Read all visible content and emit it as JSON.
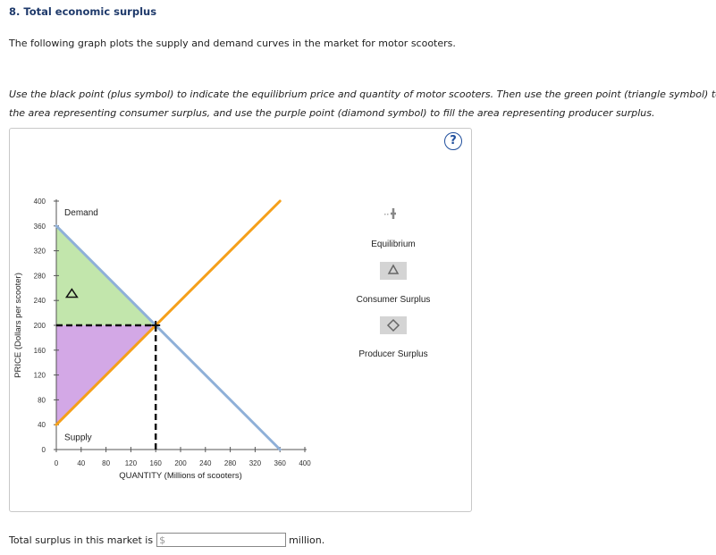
{
  "question": {
    "title": "8. Total economic surplus",
    "intro": "The following graph plots the supply and demand curves in the market for motor scooters.",
    "instructions_line1": "Use the black point (plus symbol) to indicate the equilibrium price and quantity of motor scooters. Then use the green point (triangle symbol) to fill",
    "instructions_line2": "the area representing consumer surplus, and use the purple point (diamond symbol) to fill the area representing producer surplus."
  },
  "help": {
    "label": "?"
  },
  "chart_data": {
    "type": "line",
    "title": "",
    "xlabel": "QUANTITY (Millions of scooters)",
    "ylabel": "PRICE (Dollars per scooter)",
    "xlim": [
      0,
      400
    ],
    "ylim": [
      0,
      400
    ],
    "x_ticks": [
      0,
      40,
      80,
      120,
      160,
      200,
      240,
      280,
      320,
      360,
      400
    ],
    "y_ticks": [
      0,
      40,
      80,
      120,
      160,
      200,
      240,
      280,
      320,
      360,
      400
    ],
    "series": [
      {
        "name": "Demand",
        "color": "#8fb0d8",
        "points": [
          [
            0,
            360
          ],
          [
            360,
            0
          ]
        ]
      },
      {
        "name": "Supply",
        "color": "#f5a01a",
        "points": [
          [
            0,
            40
          ],
          [
            360,
            400
          ]
        ]
      }
    ],
    "equilibrium": {
      "quantity": 160,
      "price": 200
    },
    "consumer_surplus": {
      "color": "#c2e6ac",
      "vertices": [
        [
          0,
          360
        ],
        [
          0,
          200
        ],
        [
          160,
          200
        ]
      ]
    },
    "producer_surplus": {
      "color": "#d3a8e6",
      "vertices": [
        [
          0,
          200
        ],
        [
          160,
          200
        ],
        [
          0,
          40
        ]
      ]
    },
    "annotations": [
      {
        "text": "Demand",
        "x": 13,
        "y": 377
      },
      {
        "text": "Supply",
        "x": 13,
        "y": 15
      }
    ],
    "grid": false
  },
  "legend": {
    "equilibrium": "Equilibrium",
    "consumer_surplus": "Consumer Surplus",
    "producer_surplus": "Producer Surplus"
  },
  "answer": {
    "prompt": "Total surplus in this market is",
    "currency": "$",
    "value": "",
    "unit": "million."
  }
}
